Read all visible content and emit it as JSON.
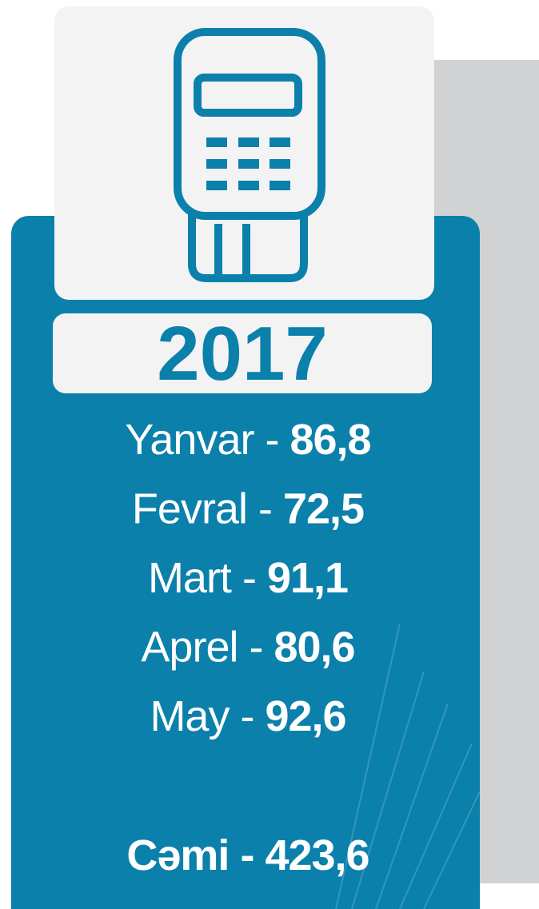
{
  "year": "2017",
  "items": [
    {
      "label": "Yanvar -",
      "value": "86,8"
    },
    {
      "label": "Fevral -",
      "value": "72,5"
    },
    {
      "label": "Mart -",
      "value": "91,1"
    },
    {
      "label": "Aprel -",
      "value": "80,6"
    },
    {
      "label": "May -",
      "value": "92,6"
    }
  ],
  "total": {
    "label": "Cəmi -",
    "value": "423,6"
  }
}
